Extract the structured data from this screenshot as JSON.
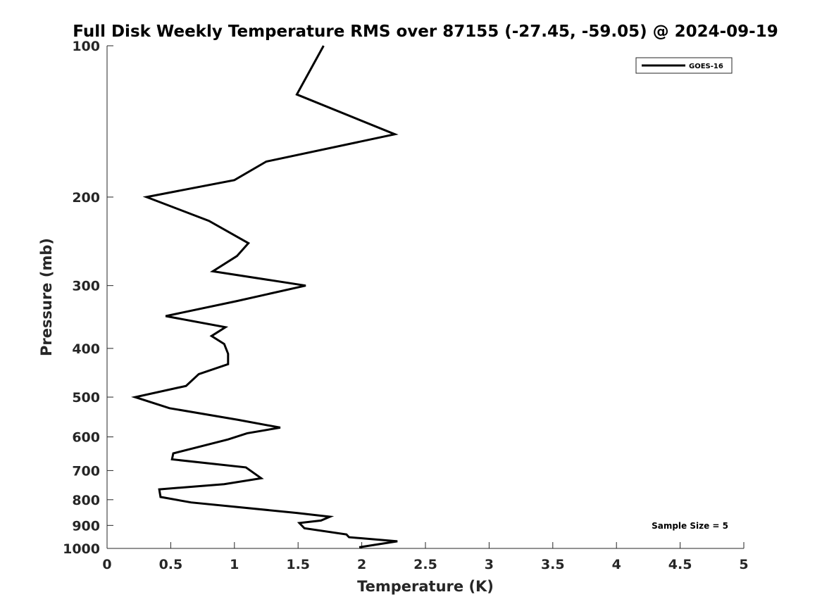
{
  "chart_data": {
    "type": "line",
    "title": "Full Disk Weekly Temperature RMS over 87155 (-27.45, -59.05) @ 2024-09-19",
    "xlabel": "Temperature (K)",
    "ylabel": "Pressure (mb)",
    "xlim": [
      0,
      5
    ],
    "ylim": [
      1000,
      100
    ],
    "yscale": "log",
    "y_reversed": true,
    "x_ticks": [
      "0",
      "0.5",
      "1",
      "1.5",
      "2",
      "2.5",
      "3",
      "3.5",
      "4",
      "4.5",
      "5"
    ],
    "y_ticks": [
      "100",
      "200",
      "300",
      "400",
      "500",
      "600",
      "700",
      "800",
      "900",
      "1000"
    ],
    "grid": false,
    "legend_position": "top-right",
    "annotation": "Sample Size = 5",
    "series": [
      {
        "name": "GOES-16",
        "color": "#000000",
        "x": [
          1.7,
          1.49,
          2.26,
          1.25,
          1.0,
          0.31,
          0.8,
          1.11,
          1.02,
          0.83,
          1.56,
          1.02,
          0.46,
          0.93,
          0.82,
          0.92,
          0.95,
          0.95,
          0.72,
          0.62,
          0.22,
          0.49,
          1.03,
          1.36,
          1.1,
          0.95,
          0.52,
          0.51,
          1.09,
          1.21,
          0.92,
          0.41,
          0.42,
          0.66,
          1.49,
          1.75,
          1.68,
          1.51,
          1.55,
          1.88,
          1.9,
          2.28,
          1.98
        ],
        "y": [
          100,
          125,
          150,
          170,
          185,
          200,
          223,
          247,
          262,
          281,
          300,
          322,
          345,
          363,
          378,
          392,
          410,
          430,
          450,
          475,
          500,
          526,
          555,
          575,
          590,
          607,
          647,
          665,
          690,
          725,
          745,
          763,
          790,
          810,
          850,
          865,
          880,
          890,
          912,
          938,
          950,
          968,
          995
        ]
      }
    ]
  }
}
